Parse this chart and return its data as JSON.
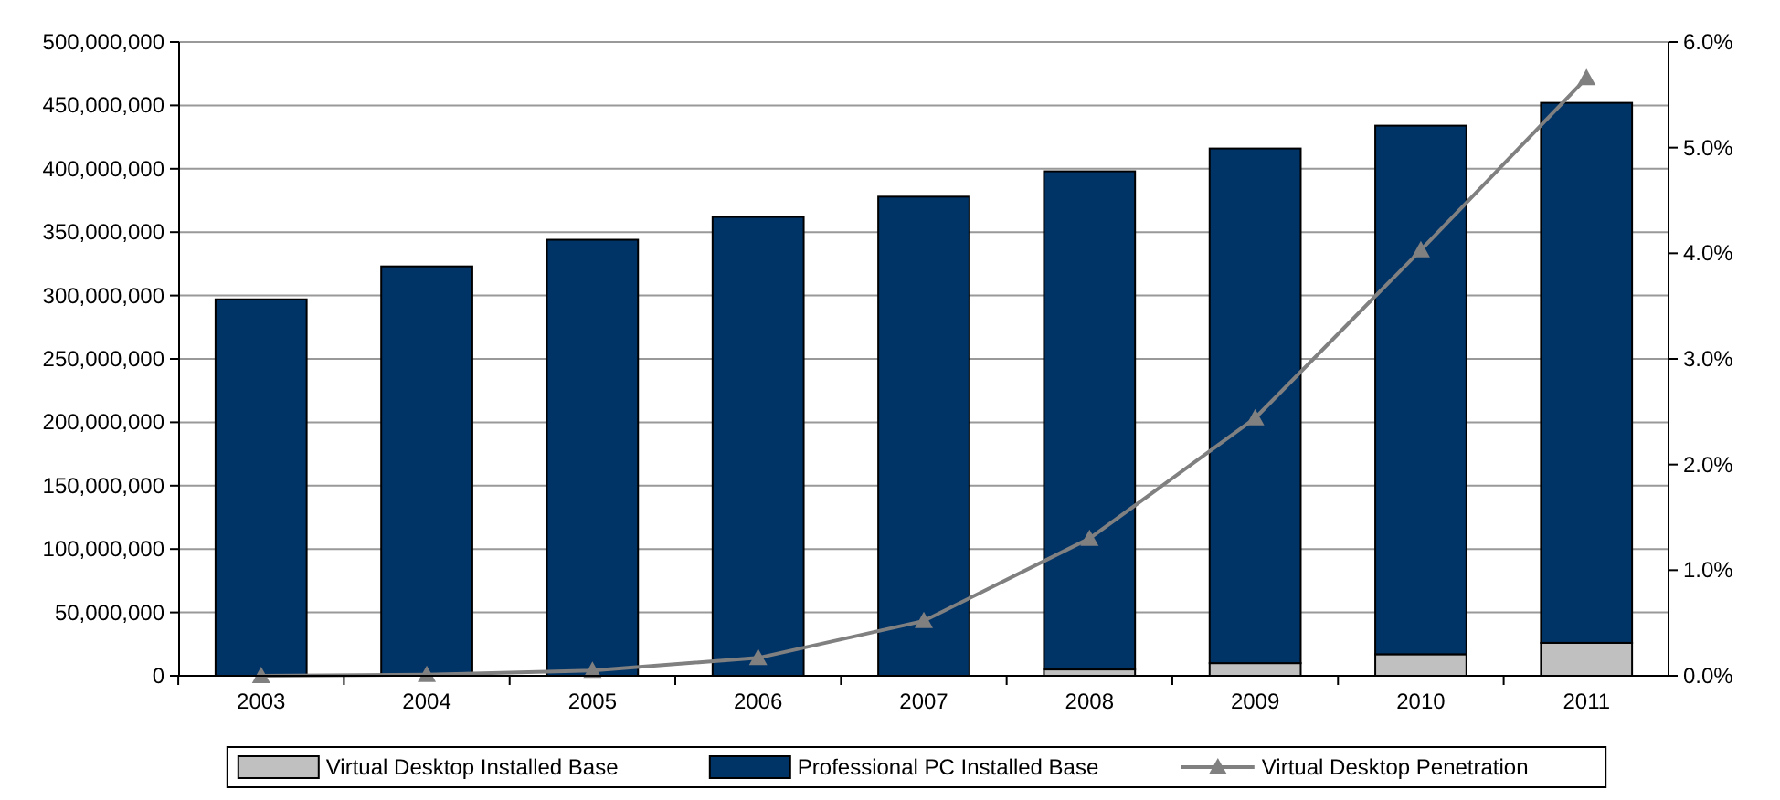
{
  "chart_data": {
    "type": "bar",
    "stacked": true,
    "categories": [
      "2003",
      "2004",
      "2005",
      "2006",
      "2007",
      "2008",
      "2009",
      "2010",
      "2011"
    ],
    "series": [
      {
        "name": "Virtual Desktop Installed Base",
        "color": "#c0c0c0",
        "values": [
          0,
          0,
          0,
          null,
          null,
          5000000,
          10000000,
          17000000,
          26000000
        ]
      },
      {
        "name": "Professional PC Installed Base",
        "color": "#003366",
        "values": [
          297000000,
          323000000,
          344000000,
          362000000,
          378000000,
          393000000,
          406000000,
          417000000,
          426000000
        ]
      },
      {
        "name": "Virtual Desktop Penetration",
        "type": "line",
        "axis": "y2",
        "color": "#808080",
        "marker": "triangle",
        "values": [
          0,
          0.01,
          0.05,
          0.17,
          0.52,
          1.3,
          2.44,
          4.03,
          5.66
        ]
      }
    ],
    "ylim": [
      0,
      500000000
    ],
    "yticks": [
      {
        "value": 0,
        "label": "0"
      },
      {
        "value": 50000000,
        "label": "50,000,000"
      },
      {
        "value": 100000000,
        "label": "100,000,000"
      },
      {
        "value": 150000000,
        "label": "150,000,000"
      },
      {
        "value": 200000000,
        "label": "200,000,000"
      },
      {
        "value": 250000000,
        "label": "250,000,000"
      },
      {
        "value": 300000000,
        "label": "300,000,000"
      },
      {
        "value": 350000000,
        "label": "350,000,000"
      },
      {
        "value": 400000000,
        "label": "400,000,000"
      },
      {
        "value": 450000000,
        "label": "450,000,000"
      },
      {
        "value": 500000000,
        "label": "500,000,000"
      }
    ],
    "y2lim": [
      0,
      6
    ],
    "y2ticks": [
      {
        "value": 0,
        "label": "0.0%"
      },
      {
        "value": 1,
        "label": "1.0%"
      },
      {
        "value": 2,
        "label": "2.0%"
      },
      {
        "value": 3,
        "label": "3.0%"
      },
      {
        "value": 4,
        "label": "4.0%"
      },
      {
        "value": 5,
        "label": "5.0%"
      },
      {
        "value": 6,
        "label": "6.0%"
      }
    ],
    "grid": "y",
    "legend": "bottom"
  }
}
